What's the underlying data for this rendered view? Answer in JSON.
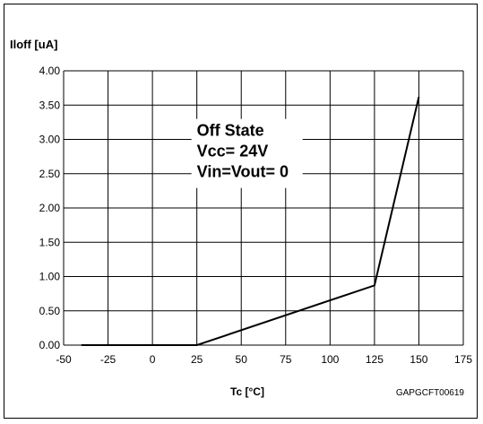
{
  "chart_data": {
    "type": "line",
    "ylabel": "Iloff [uA]",
    "xlabel": "Tc [°C]",
    "figure_code": "GAPGCFT00619",
    "xlim": [
      -50,
      175
    ],
    "ylim": [
      0,
      4
    ],
    "x_ticks": [
      "-50",
      "-25",
      "0",
      "25",
      "50",
      "75",
      "100",
      "125",
      "150",
      "175"
    ],
    "y_ticks": [
      "0.00",
      "0.50",
      "1.00",
      "1.50",
      "2.00",
      "2.50",
      "3.00",
      "3.50",
      "4.00"
    ],
    "grid": true,
    "annotation": [
      "Off State",
      "Vcc= 24V",
      "Vin=Vout= 0"
    ],
    "series": [
      {
        "x": [
          -40,
          25,
          125,
          150
        ],
        "y": [
          0,
          0,
          0.87,
          3.62
        ]
      }
    ]
  }
}
